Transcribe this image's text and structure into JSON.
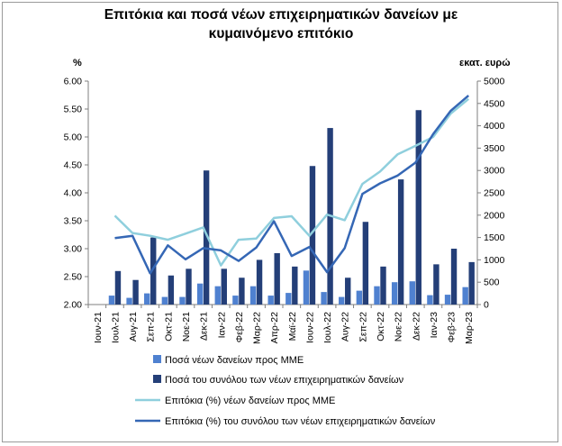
{
  "chart_data": {
    "type": "bar",
    "title": "Επιτόκια και ποσά νέων επιχειρηματικών δανείων με\nκυμαινόμενο επιτόκιο",
    "y_left_unit": "%",
    "y_right_unit": "εκατ. ευρώ",
    "y_left_range": [
      2.0,
      6.0
    ],
    "y_left_ticks": [
      "2.00",
      "2.50",
      "3.00",
      "3.50",
      "4.00",
      "4.50",
      "5.00",
      "5.50",
      "6.00"
    ],
    "y_right_range": [
      0,
      5000
    ],
    "y_right_ticks": [
      "0",
      "500",
      "1000",
      "1500",
      "2000",
      "2500",
      "3000",
      "3500",
      "4000",
      "4500",
      "5000"
    ],
    "grid": false,
    "legend_position": "bottom",
    "categories": [
      "Ιουν-21",
      "Ιουλ-21",
      "Αυγ-21",
      "Σεπ-21",
      "Οκτ-21",
      "Νοε-21",
      "Δεκ-21",
      "Ιαν-22",
      "Φεβ-22",
      "Μαρ-22",
      "Απρ-22",
      "Μαϊ-22",
      "Ιουν-22",
      "Ιουλ-22",
      "Αυγ-22",
      "Σεπ-22",
      "Οκτ-22",
      "Νοε-22",
      "Δεκ-22",
      "Ιαν-23",
      "Φεβ-23",
      "Μαρ-23"
    ],
    "x_tick_labels": [
      "Ιουν-21",
      "Ιουλ-21",
      "Αυγ-21",
      "Σεπ-21",
      "Οκτ-21",
      "Νοε-21",
      "Δεκ-21",
      "Ιαν-22",
      "Φεβ-22",
      "Μαρ-22",
      "Απρ-22",
      "Μαϊ-22",
      "Ιουν-22",
      "Ιουλ-22",
      "Αυγ-22",
      "Σεπ-22",
      "Οκτ-22",
      "Νοε-22",
      "Δεκ-22",
      "Ιαν-23",
      "Φεβ-23",
      "Μαρ-23"
    ],
    "series": [
      {
        "name": "Ποσά νέων δανείων προς ΜΜΕ",
        "type": "bar",
        "axis": "right",
        "color": "#4f81d0",
        "values": [
          null,
          200,
          150,
          250,
          170,
          170,
          470,
          410,
          200,
          410,
          200,
          260,
          760,
          280,
          170,
          310,
          410,
          500,
          520,
          210,
          220,
          390
        ]
      },
      {
        "name": "Ποσά του συνόλου των νέων επιχειρηματικών δανείων",
        "type": "bar",
        "axis": "right",
        "color": "#243f78",
        "values": [
          null,
          750,
          550,
          1500,
          650,
          800,
          3000,
          800,
          600,
          1000,
          1150,
          850,
          3100,
          3950,
          600,
          1850,
          850,
          2800,
          4350,
          900,
          1250,
          950
        ]
      },
      {
        "name": "Επιτόκια (%) νέων δανείων προς ΜΜΕ",
        "type": "line",
        "axis": "left",
        "color": "#8fcfdd",
        "values": [
          null,
          3.59,
          3.28,
          3.23,
          3.16,
          3.27,
          3.38,
          2.7,
          3.16,
          3.18,
          3.55,
          3.58,
          3.23,
          3.61,
          3.51,
          4.16,
          4.38,
          4.69,
          4.84,
          5.0,
          5.42,
          5.68
        ]
      },
      {
        "name": "Επιτόκια (%) του συνόλου των νέων επιχειρηματικών δανείων",
        "type": "line",
        "axis": "left",
        "color": "#3567b5",
        "values": [
          null,
          3.19,
          3.23,
          2.56,
          3.06,
          2.81,
          3.01,
          2.97,
          2.78,
          3.02,
          3.49,
          2.87,
          3.03,
          2.58,
          3.01,
          3.98,
          4.17,
          4.31,
          4.54,
          5.05,
          5.47,
          5.74
        ]
      }
    ]
  }
}
